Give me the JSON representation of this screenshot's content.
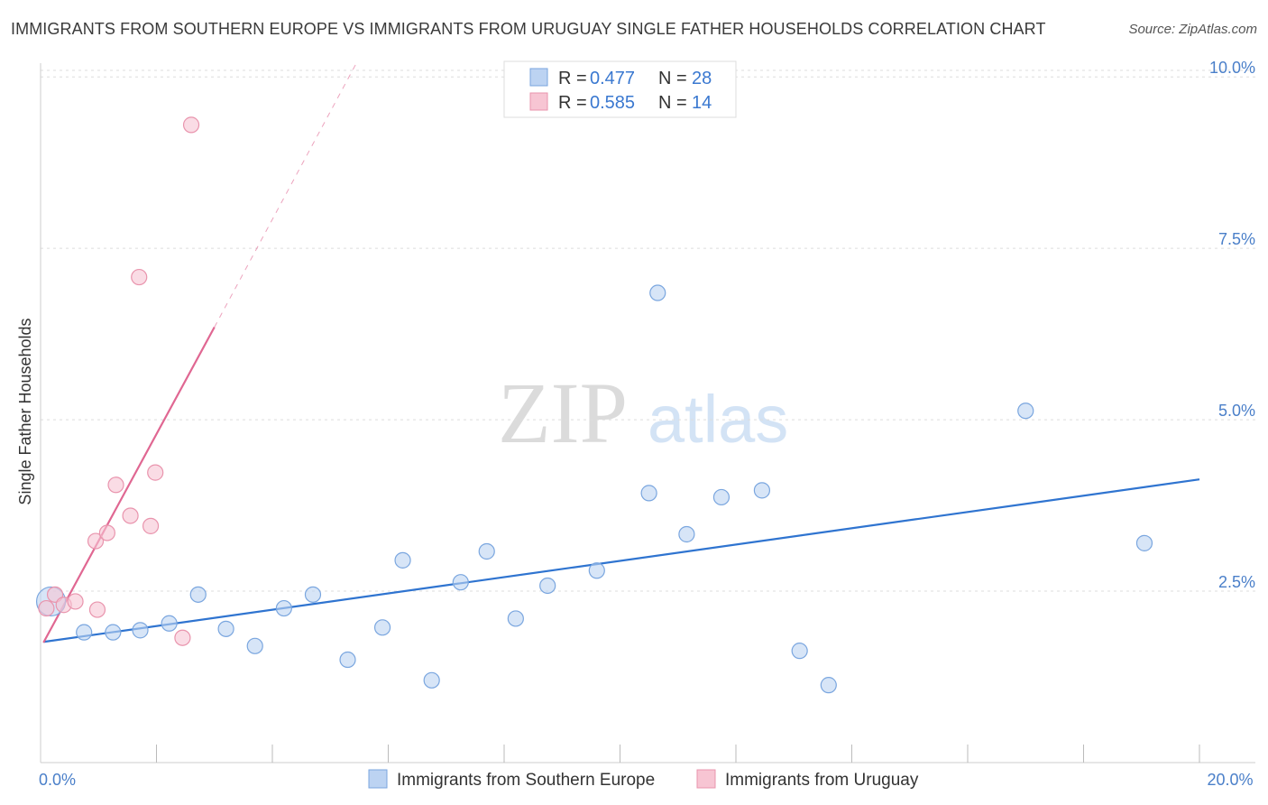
{
  "header": {
    "title": "IMMIGRANTS FROM SOUTHERN EUROPE VS IMMIGRANTS FROM URUGUAY SINGLE FATHER HOUSEHOLDS CORRELATION CHART",
    "source": "Source: ZipAtlas.com"
  },
  "watermark": {
    "zip": "ZIP",
    "atlas": "atlas"
  },
  "colors": {
    "blue_fill": "#bcd3f2",
    "blue_stroke": "#7aa6df",
    "blue_line": "#2f74d0",
    "pink_fill": "#f7c5d3",
    "pink_stroke": "#e994ad",
    "pink_line": "#e06792",
    "tick_text": "#4a7fc9",
    "grid": "#dddddd"
  },
  "legend": {
    "r_label": "R =",
    "n_label": "N =",
    "rows": [
      {
        "series": "Immigrants from Southern Europe",
        "r": "0.477",
        "n": "28"
      },
      {
        "series": "Immigrants from Uruguay",
        "r": "0.585",
        "n": "14"
      }
    ]
  },
  "chart_data": {
    "type": "scatter",
    "title": "IMMIGRANTS FROM SOUTHERN EUROPE VS IMMIGRANTS FROM URUGUAY SINGLE FATHER HOUSEHOLDS CORRELATION CHART",
    "xlabel": "",
    "ylabel": "Single Father Households",
    "xlim": [
      0,
      20
    ],
    "ylim": [
      0,
      10.2
    ],
    "x_tick_labels": [
      {
        "value": 0,
        "label": "0.0%"
      },
      {
        "value": 20,
        "label": "20.0%"
      }
    ],
    "y_tick_labels": [
      {
        "value": 2.5,
        "label": "2.5%"
      },
      {
        "value": 5.0,
        "label": "5.0%"
      },
      {
        "value": 7.5,
        "label": "7.5%"
      },
      {
        "value": 10.0,
        "label": "10.0%"
      }
    ],
    "x_minor_ticks": [
      2,
      4,
      6,
      8,
      10,
      12,
      14,
      16,
      18,
      20
    ],
    "series": [
      {
        "name": "Immigrants from Southern Europe",
        "color": "blue",
        "points": [
          {
            "x": 0.18,
            "y": 2.35,
            "big": true
          },
          {
            "x": 0.75,
            "y": 1.9
          },
          {
            "x": 1.25,
            "y": 1.9
          },
          {
            "x": 1.72,
            "y": 1.93
          },
          {
            "x": 2.22,
            "y": 2.03
          },
          {
            "x": 2.72,
            "y": 2.45
          },
          {
            "x": 3.2,
            "y": 1.95
          },
          {
            "x": 3.7,
            "y": 1.7
          },
          {
            "x": 4.2,
            "y": 2.25
          },
          {
            "x": 4.7,
            "y": 2.45
          },
          {
            "x": 5.3,
            "y": 1.5
          },
          {
            "x": 5.9,
            "y": 1.97
          },
          {
            "x": 6.25,
            "y": 2.95
          },
          {
            "x": 6.75,
            "y": 1.2
          },
          {
            "x": 7.25,
            "y": 2.63
          },
          {
            "x": 7.7,
            "y": 3.08
          },
          {
            "x": 8.2,
            "y": 2.1
          },
          {
            "x": 8.75,
            "y": 2.58
          },
          {
            "x": 9.6,
            "y": 2.8
          },
          {
            "x": 10.5,
            "y": 3.93
          },
          {
            "x": 10.65,
            "y": 6.85
          },
          {
            "x": 11.15,
            "y": 3.33
          },
          {
            "x": 11.75,
            "y": 3.87
          },
          {
            "x": 12.45,
            "y": 3.97
          },
          {
            "x": 13.1,
            "y": 1.63
          },
          {
            "x": 13.6,
            "y": 1.13
          },
          {
            "x": 17.0,
            "y": 5.13
          },
          {
            "x": 19.05,
            "y": 3.2
          }
        ],
        "trend": {
          "x1": 0.05,
          "y1": 1.76,
          "x2": 20.0,
          "y2": 4.13
        }
      },
      {
        "name": "Immigrants from Uruguay",
        "color": "pink",
        "points": [
          {
            "x": 0.1,
            "y": 2.25
          },
          {
            "x": 0.25,
            "y": 2.45
          },
          {
            "x": 0.4,
            "y": 2.3
          },
          {
            "x": 0.6,
            "y": 2.35
          },
          {
            "x": 0.95,
            "y": 3.23
          },
          {
            "x": 0.98,
            "y": 2.23
          },
          {
            "x": 1.15,
            "y": 3.35
          },
          {
            "x": 1.3,
            "y": 4.05
          },
          {
            "x": 1.55,
            "y": 3.6
          },
          {
            "x": 1.7,
            "y": 7.08
          },
          {
            "x": 1.9,
            "y": 3.45
          },
          {
            "x": 1.98,
            "y": 4.23
          },
          {
            "x": 2.45,
            "y": 1.82
          },
          {
            "x": 2.6,
            "y": 9.3
          }
        ],
        "trend": {
          "x1": 0.05,
          "y1": 1.75,
          "x2": 3.0,
          "y2": 6.35,
          "dash_x2": 5.45,
          "dash_y2": 10.2
        }
      }
    ]
  }
}
